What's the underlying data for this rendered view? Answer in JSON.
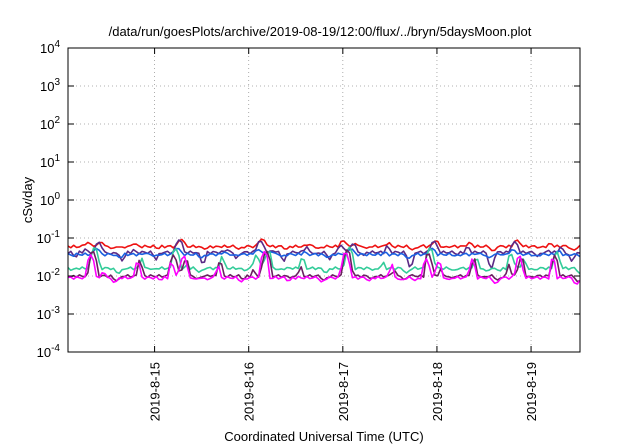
{
  "chart_data": {
    "type": "line",
    "title": "/data/run/goesPlots/archive/2019-08-19/12:00/flux/../bryn/5daysMoon.plot",
    "xlabel": "Coordinated Universal Time (UTC)",
    "ylabel": "cSv/day",
    "yscale": "log",
    "ylim": [
      0.0001,
      10000
    ],
    "xlim_days": [
      14.08,
      19.52
    ],
    "x_ticks": [
      {
        "label": "2019-8-15",
        "day": 15
      },
      {
        "label": "2019-8-16",
        "day": 16
      },
      {
        "label": "2019-8-17",
        "day": 17
      },
      {
        "label": "2019-8-18",
        "day": 18
      },
      {
        "label": "2019-8-19",
        "day": 19
      }
    ],
    "y_ticks": [
      {
        "base": "10",
        "exp": "-4",
        "value": 0.0001
      },
      {
        "base": "10",
        "exp": "-3",
        "value": 0.001
      },
      {
        "base": "10",
        "exp": "-2",
        "value": 0.01
      },
      {
        "base": "10",
        "exp": "-1",
        "value": 0.1
      },
      {
        "base": "10",
        "exp": "0",
        "value": 1
      },
      {
        "base": "10",
        "exp": "1",
        "value": 10
      },
      {
        "base": "10",
        "exp": "2",
        "value": 100
      },
      {
        "base": "10",
        "exp": "3",
        "value": 1000
      },
      {
        "base": "10",
        "exp": "4",
        "value": 10000
      }
    ],
    "grid": true,
    "legend": "none",
    "series": [
      {
        "color": "#ee1111",
        "base": 0.06,
        "spike": 0.095,
        "trough": 0.045
      },
      {
        "color": "#5b2a86",
        "base": 0.042,
        "spike": 0.09,
        "trough": 0.012
      },
      {
        "color": "#1a5fe0",
        "base": 0.037,
        "spike": 0.055,
        "trough": 0.028
      },
      {
        "color": "#33cc99",
        "base": 0.016,
        "spike": 0.06,
        "trough": 0.011
      },
      {
        "color": "#6b2060",
        "base": 0.01,
        "spike": 0.05,
        "trough": 0.007
      },
      {
        "color": "#ff00ff",
        "base": 0.009,
        "spike": 0.045,
        "trough": 0.006
      }
    ]
  }
}
